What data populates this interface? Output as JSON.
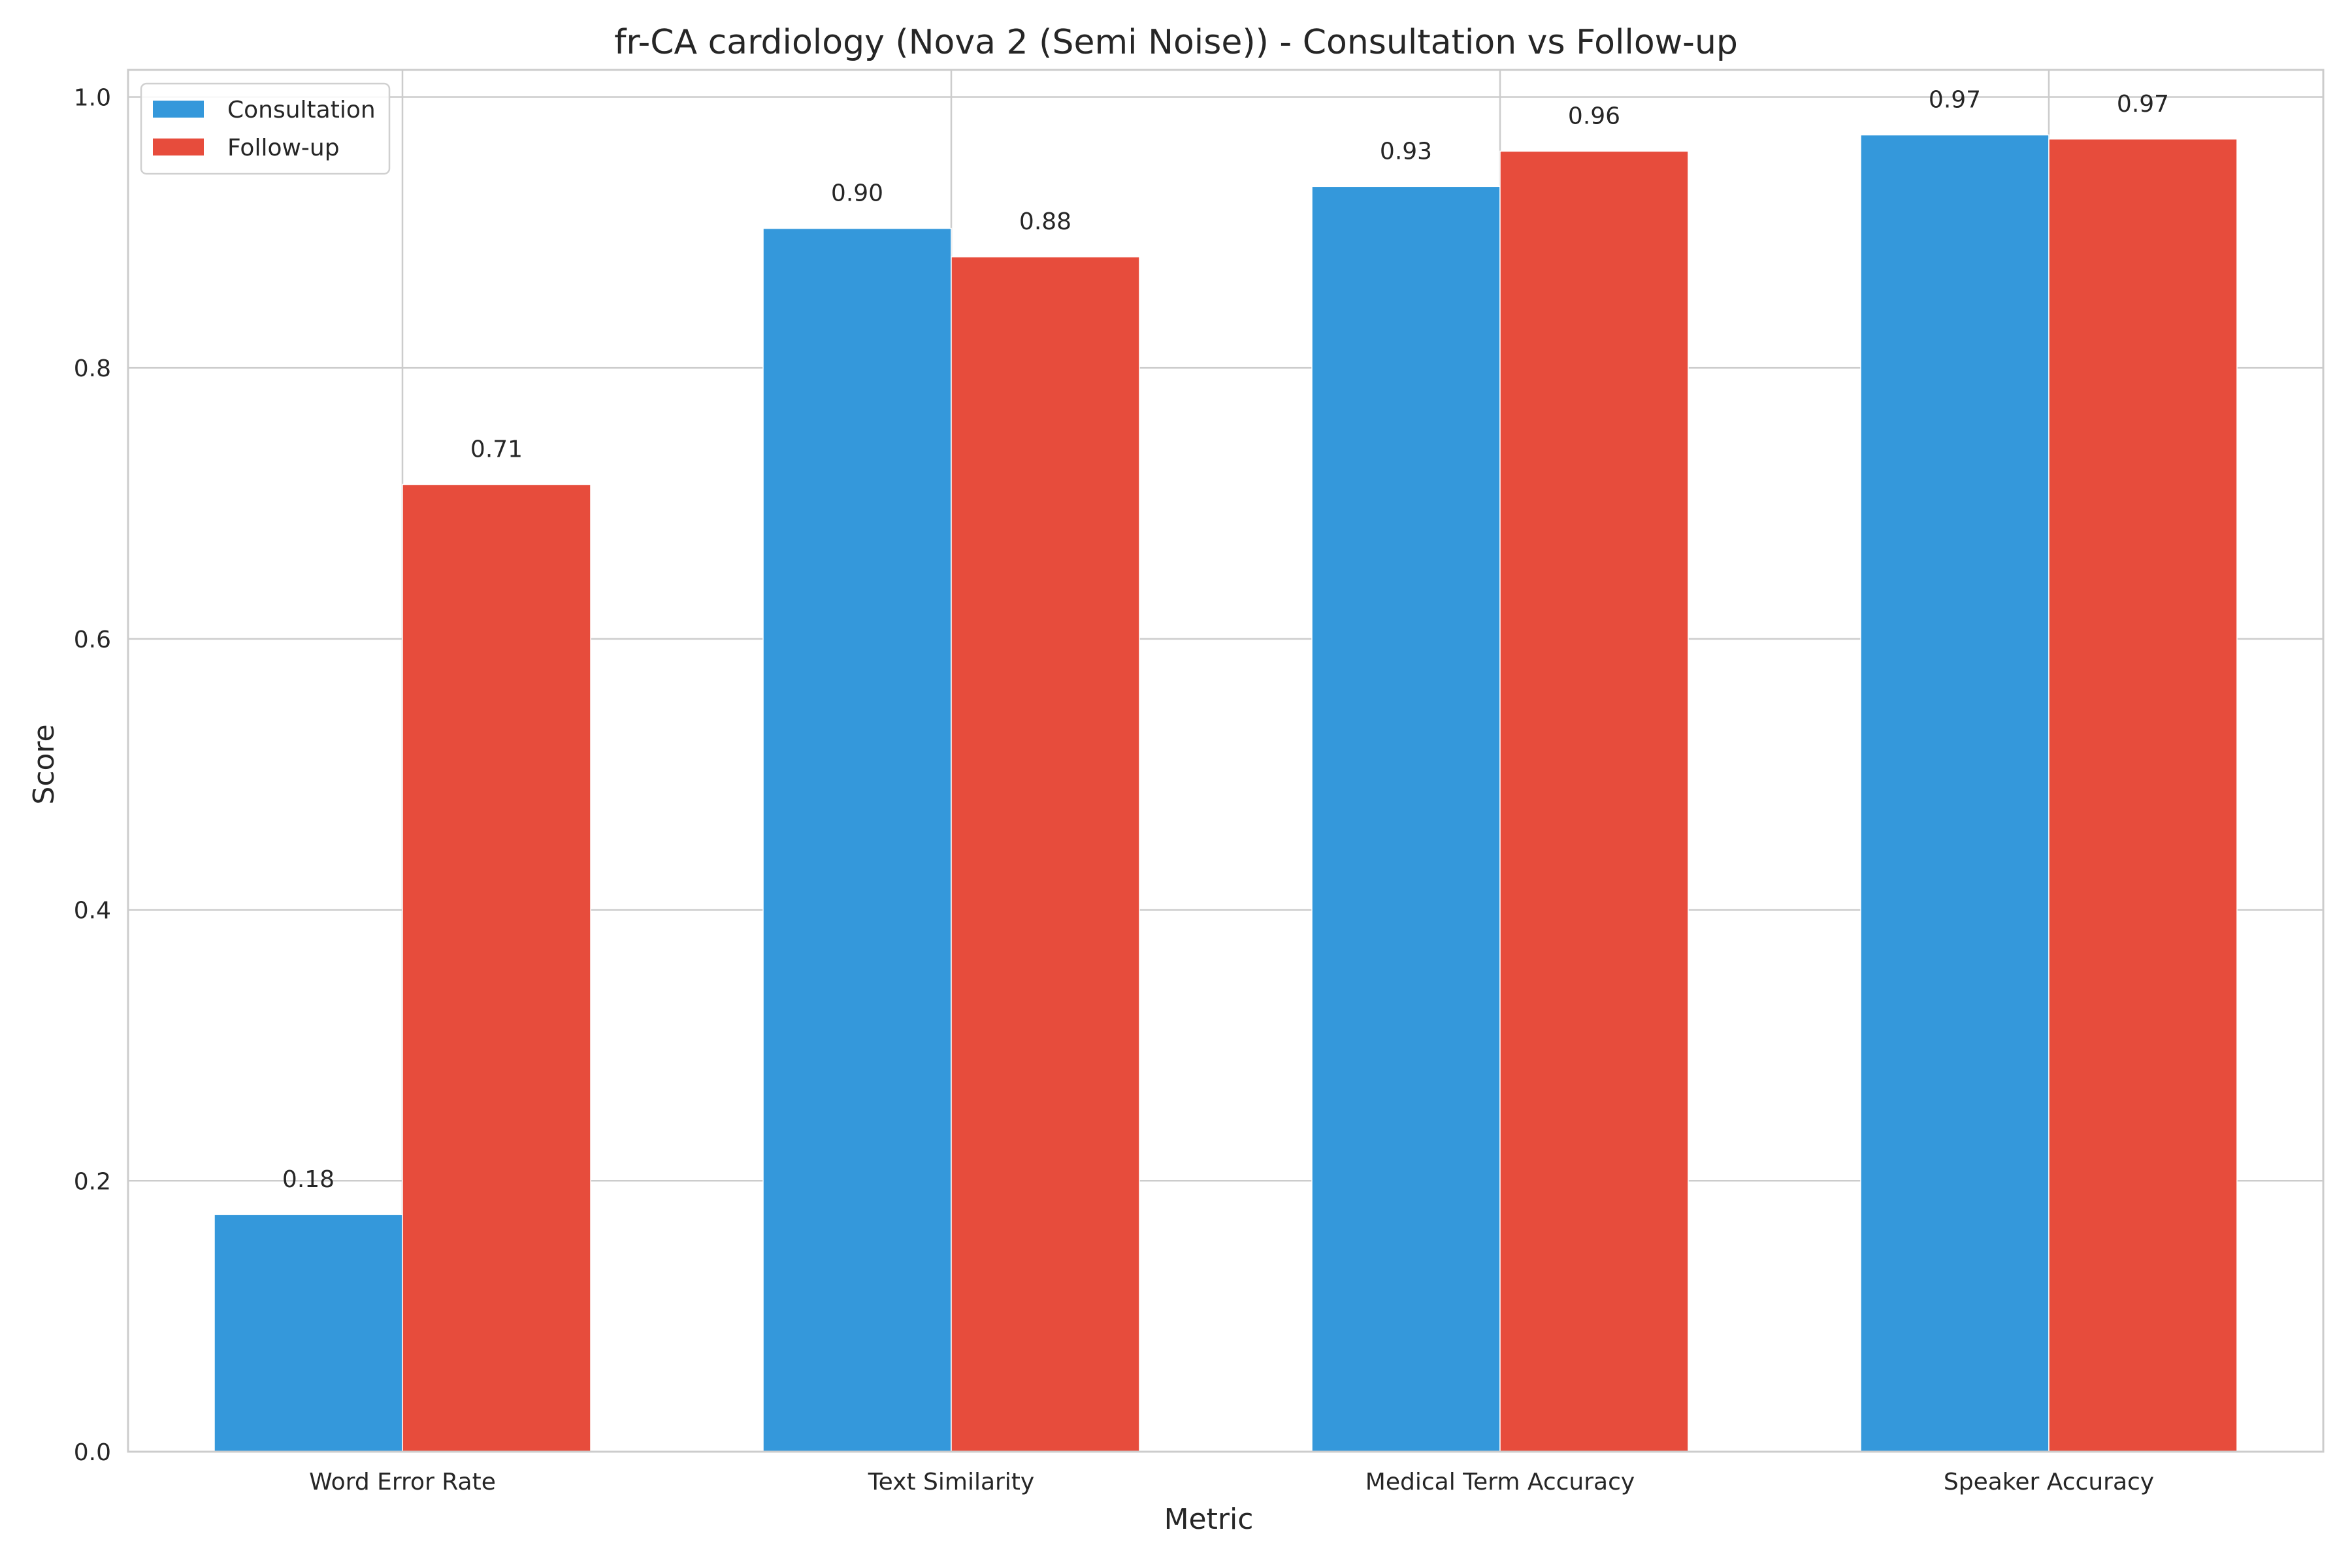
{
  "chart_data": {
    "type": "bar",
    "title": "fr-CA cardiology (Nova 2 (Semi Noise)) - Consultation vs Follow-up",
    "xlabel": "Metric",
    "ylabel": "Score",
    "categories": [
      "Word Error Rate",
      "Text Similarity",
      "Medical Term Accuracy",
      "Speaker Accuracy"
    ],
    "series": [
      {
        "name": "Consultation",
        "color": "#3498db",
        "values": [
          0.175,
          0.903,
          0.934,
          0.972
        ],
        "labels": [
          "0.18",
          "0.90",
          "0.93",
          "0.97"
        ]
      },
      {
        "name": "Follow-up",
        "color": "#e74c3c",
        "values": [
          0.714,
          0.882,
          0.96,
          0.969
        ],
        "labels": [
          "0.71",
          "0.88",
          "0.96",
          "0.97"
        ]
      }
    ],
    "ylim": [
      0,
      1.02
    ],
    "yticks": [
      0.0,
      0.2,
      0.4,
      0.6,
      0.8,
      1.0
    ],
    "ytick_labels": [
      "0.0",
      "0.2",
      "0.4",
      "0.6",
      "0.8",
      "1.0"
    ],
    "grid": true,
    "legend_position": "top-left",
    "grid_color": "#cccccc",
    "axis_color": "#cccccc",
    "text_color": "#262626"
  }
}
